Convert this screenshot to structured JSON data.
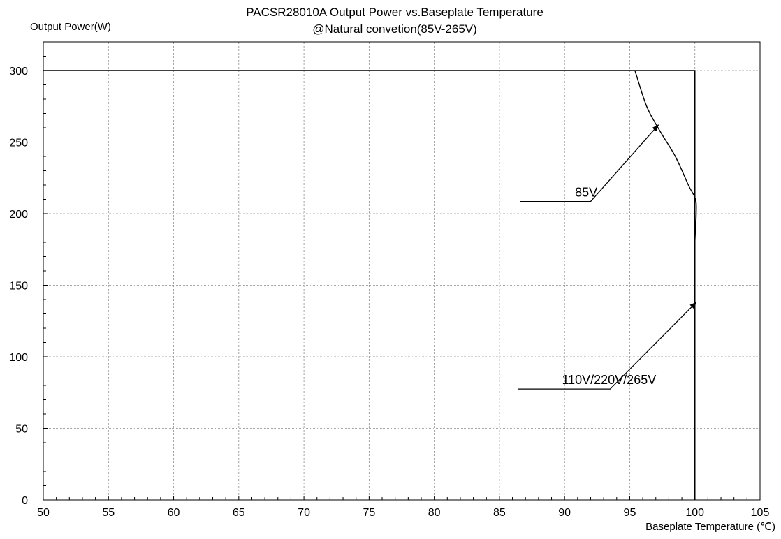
{
  "chart_data": {
    "type": "line",
    "title": "PACSR28010A Output Power vs.Baseplate Temperature",
    "subtitle": "@Natural convetion(85V-265V)",
    "xlabel": "Baseplate Temperature (℃)",
    "ylabel": "Output Power(W)",
    "xlim": [
      50,
      105
    ],
    "ylim": [
      0,
      320
    ],
    "x_ticks": [
      50,
      55,
      60,
      65,
      70,
      75,
      80,
      85,
      90,
      95,
      100,
      105
    ],
    "y_ticks": [
      0,
      50,
      100,
      150,
      200,
      250,
      300
    ],
    "grid": true,
    "series": [
      {
        "name": "110V/220V/265V",
        "x": [
          50,
          100,
          100
        ],
        "y": [
          300,
          300,
          0
        ]
      },
      {
        "name": "85V",
        "x": [
          95.4,
          96.3,
          97.3,
          98.5,
          99.5,
          100.05,
          100.1,
          100.05,
          100
        ],
        "y": [
          300,
          275,
          258,
          240,
          220,
          210,
          200,
          190,
          180
        ]
      }
    ],
    "annotations": [
      {
        "text": "85V",
        "label_x": 90.8,
        "label_y": 212,
        "line": [
          [
            86.6,
            208.5
          ],
          [
            92.0,
            208.5
          ],
          [
            97.2,
            262
          ]
        ]
      },
      {
        "text": "110V/220V/265V",
        "label_x": 89.8,
        "label_y": 81,
        "line": [
          [
            86.4,
            77.5
          ],
          [
            93.5,
            77.5
          ],
          [
            100.1,
            138
          ]
        ]
      }
    ],
    "colors": {
      "line": "#000000",
      "grid": "#8c8c8c",
      "axis": "#000000"
    }
  }
}
